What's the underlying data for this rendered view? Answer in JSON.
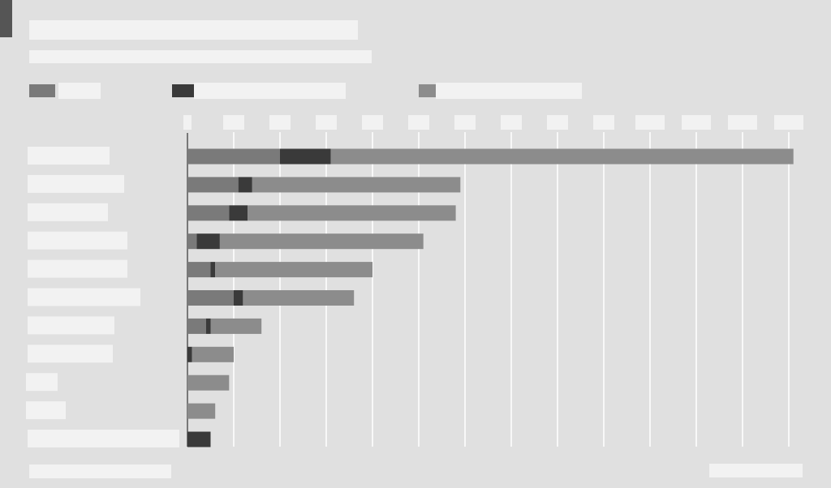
{
  "title": "",
  "subtitle": "",
  "footer": {
    "source": "",
    "credit": ""
  },
  "colors": {
    "background": "#e0e0e0",
    "label_box": "#f2f2f2",
    "gridline": "#ffffff",
    "series": [
      "#7a7a7a",
      "#3a3a3a",
      "#8c8c8c"
    ]
  },
  "chart_data": {
    "type": "bar",
    "orientation": "horizontal",
    "stacked": true,
    "categories": [
      "",
      "",
      "",
      "",
      "",
      "",
      "",
      "",
      "",
      "",
      ""
    ],
    "series": [
      {
        "name": "",
        "values": [
          20,
          11,
          9,
          2,
          5,
          10,
          4,
          0,
          0,
          0,
          0
        ]
      },
      {
        "name": "",
        "values": [
          11,
          3,
          4,
          5,
          1,
          2,
          1,
          1,
          0,
          0,
          5
        ]
      },
      {
        "name": "",
        "values": [
          100,
          45,
          45,
          44,
          34,
          24,
          11,
          9,
          9,
          6,
          0
        ]
      }
    ],
    "xlim": [
      0,
      130
    ],
    "xticks": [
      0,
      10,
      20,
      30,
      40,
      50,
      60,
      70,
      80,
      90,
      100,
      110,
      120,
      130
    ],
    "xtick_labels": [
      "",
      "",
      "",
      "",
      "",
      "",
      "",
      "",
      "",
      "",
      "",
      "",
      "",
      ""
    ],
    "grid": true,
    "legend_position": "top-left"
  }
}
